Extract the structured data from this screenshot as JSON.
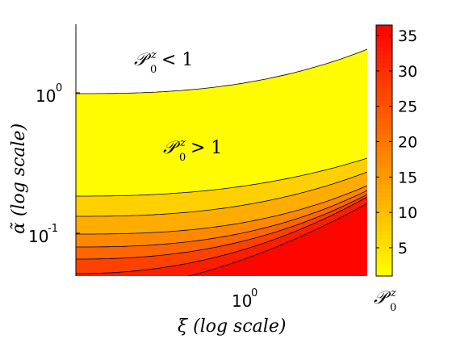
{
  "chart_data": {
    "type": "contour",
    "xlabel": "ξ (log scale)",
    "ylabel": "α̃ (log scale)",
    "x_scale": "log",
    "y_scale": "log",
    "x_ticks": [
      {
        "base": "10",
        "exp": "0",
        "value": 1
      }
    ],
    "y_ticks": [
      {
        "base": "10",
        "exp": "0",
        "value": 1
      },
      {
        "base": "10",
        "exp": "-1",
        "value": 0.1
      }
    ],
    "regions": [
      {
        "label": "P0z < 1",
        "text_main": "𝒫",
        "sup": "z",
        "sub": "0",
        "rel": "< 1"
      },
      {
        "label": "P0z > 1",
        "text_main": "𝒫",
        "sup": "z",
        "sub": "0",
        "rel": "> 1"
      }
    ],
    "colorbar": {
      "label_main": "𝒫",
      "label_sup": "z",
      "label_sub": "0",
      "ticks": [
        5,
        10,
        15,
        20,
        25,
        30,
        35
      ],
      "min": 1,
      "max": 36.5,
      "colormap": "autumn (yellow to red)"
    },
    "contour_levels": [
      1,
      5,
      10,
      15,
      20,
      25,
      30,
      35
    ],
    "grid": false
  }
}
